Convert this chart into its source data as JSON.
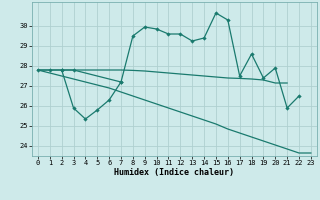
{
  "xlabel": "Humidex (Indice chaleur)",
  "line1_x": [
    0,
    1,
    2,
    3,
    7,
    8,
    9,
    10,
    11,
    12,
    13,
    14,
    15,
    16,
    17,
    18,
    19,
    20,
    21,
    22
  ],
  "line1_y": [
    27.8,
    27.8,
    27.8,
    27.8,
    27.2,
    29.5,
    29.95,
    29.85,
    29.6,
    29.6,
    29.25,
    29.4,
    30.65,
    30.3,
    27.5,
    28.6,
    27.4,
    27.9,
    25.9,
    26.5
  ],
  "line2_x": [
    2,
    3,
    4,
    5,
    6,
    7
  ],
  "line2_y": [
    27.8,
    25.9,
    25.35,
    25.8,
    26.3,
    27.2
  ],
  "line3_x": [
    0,
    1,
    2,
    3,
    4,
    5,
    6,
    7,
    8,
    9,
    10,
    11,
    12,
    13,
    14,
    15,
    16,
    17,
    18,
    19,
    20,
    21
  ],
  "line3_y": [
    27.8,
    27.8,
    27.8,
    27.8,
    27.8,
    27.8,
    27.8,
    27.8,
    27.78,
    27.75,
    27.7,
    27.65,
    27.6,
    27.55,
    27.5,
    27.45,
    27.4,
    27.38,
    27.35,
    27.3,
    27.15,
    27.15
  ],
  "line4_x": [
    0,
    1,
    2,
    3,
    4,
    5,
    6,
    7,
    8,
    9,
    10,
    11,
    12,
    13,
    14,
    15,
    16,
    17,
    18,
    19,
    20,
    21,
    22,
    23
  ],
  "line4_y": [
    27.8,
    27.65,
    27.5,
    27.35,
    27.2,
    27.05,
    26.9,
    26.7,
    26.5,
    26.3,
    26.1,
    25.9,
    25.7,
    25.5,
    25.3,
    25.1,
    24.85,
    24.65,
    24.45,
    24.25,
    24.05,
    23.85,
    23.65,
    23.65
  ],
  "color": "#1a7a6e",
  "bg_color": "#ceeaea",
  "grid_color": "#afd0d0",
  "ylim": [
    23.5,
    31.2
  ],
  "yticks": [
    24,
    25,
    26,
    27,
    28,
    29,
    30
  ],
  "xticks": [
    0,
    1,
    2,
    3,
    4,
    5,
    6,
    7,
    8,
    9,
    10,
    11,
    12,
    13,
    14,
    15,
    16,
    17,
    18,
    19,
    20,
    21,
    22,
    23
  ]
}
